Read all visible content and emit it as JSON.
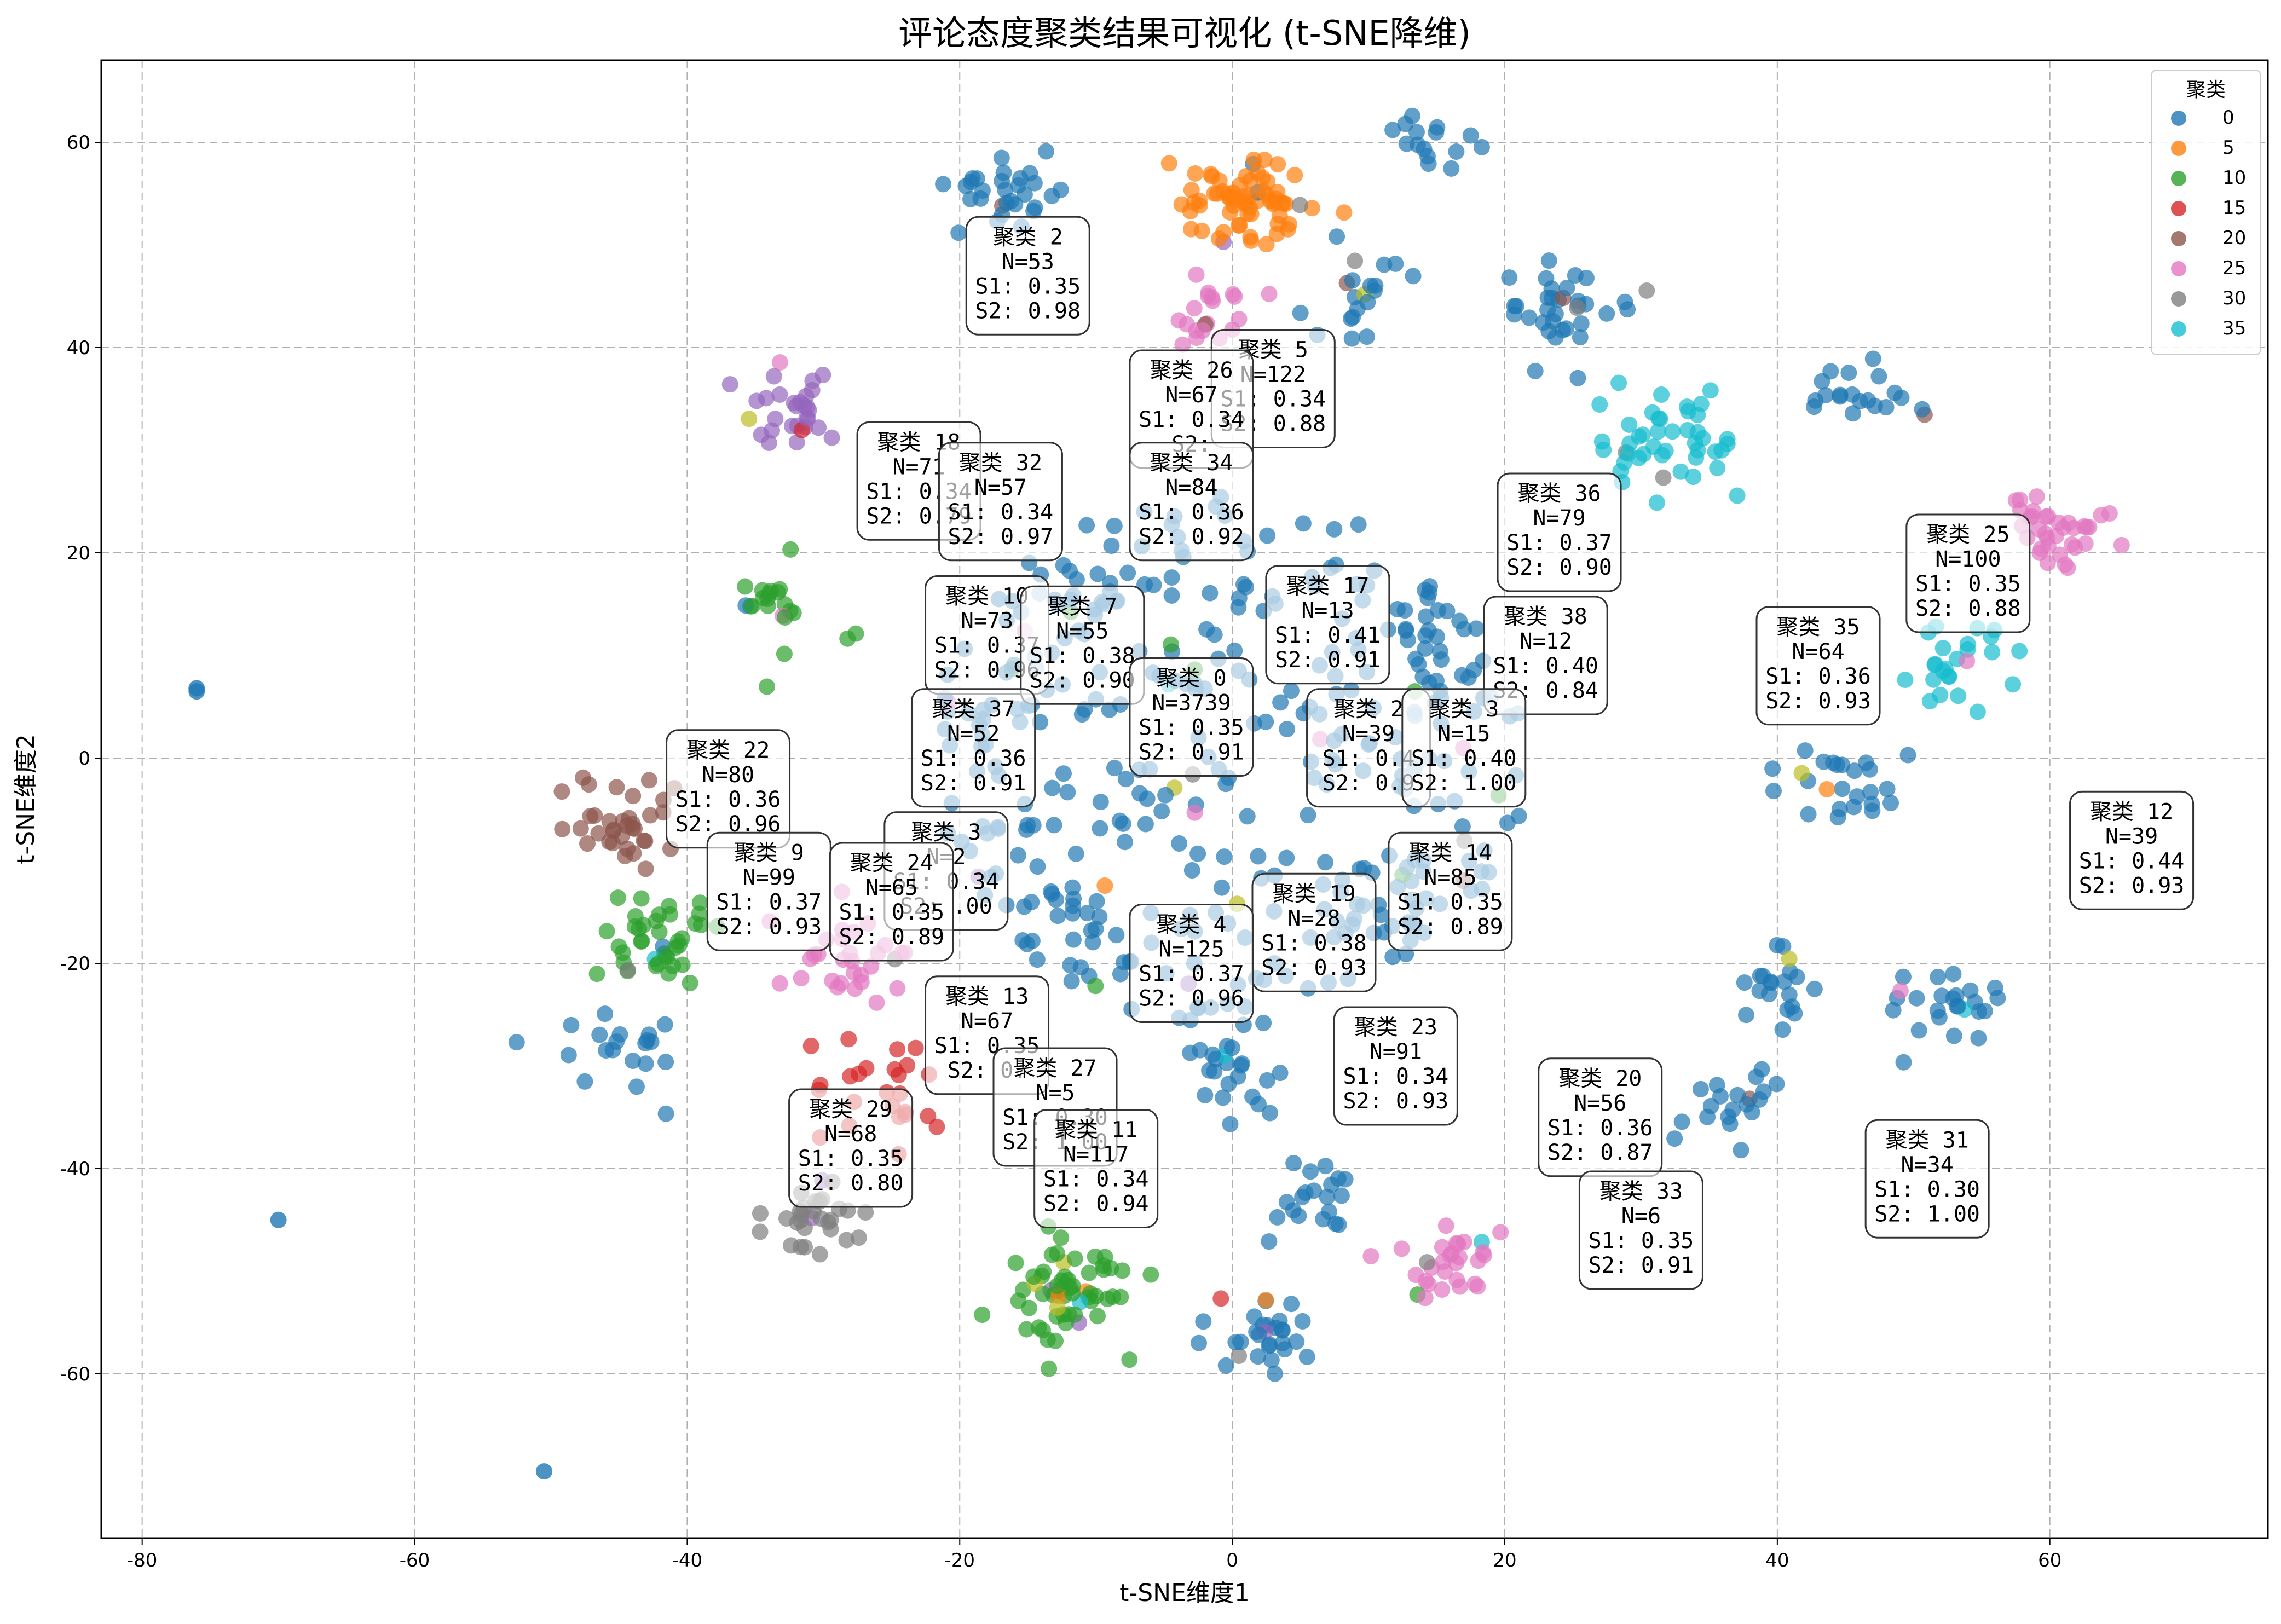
{
  "chart_data": {
    "type": "scatter",
    "title": "评论态度聚类结果可视化 (t-SNE降维)",
    "xlabel": "t-SNE维度1",
    "ylabel": "t-SNE维度2",
    "xlim": [
      -83,
      76
    ],
    "ylim": [
      -76,
      68
    ],
    "xticks": [
      -80,
      -60,
      -40,
      -20,
      0,
      20,
      40,
      60
    ],
    "yticks": [
      -60,
      -40,
      -20,
      0,
      20,
      40,
      60
    ],
    "grid": true,
    "legend": {
      "title": "聚类",
      "placement": "top-right",
      "entries": [
        {
          "label": "0",
          "color": "#1f77b4"
        },
        {
          "label": "5",
          "color": "#ff7f0e"
        },
        {
          "label": "10",
          "color": "#2ca02c"
        },
        {
          "label": "15",
          "color": "#d62728"
        },
        {
          "label": "20",
          "color": "#8c564b"
        },
        {
          "label": "25",
          "color": "#e377c2"
        },
        {
          "label": "30",
          "color": "#7f7f7f"
        },
        {
          "label": "35",
          "color": "#17becf"
        }
      ]
    },
    "clusters": [
      {
        "id": 0,
        "x": 0,
        "y": 0,
        "spread": 14,
        "count": 380,
        "color": "#1f77b4"
      },
      {
        "id": 5,
        "x": 1,
        "y": 54,
        "spread": 2.2,
        "count": 70,
        "color": "#ff7f0e"
      },
      {
        "id": 10,
        "x": -12,
        "y": -52,
        "spread": 2.5,
        "count": 60,
        "color": "#2ca02c"
      },
      {
        "id": 10,
        "x": -42,
        "y": -17,
        "spread": 2.2,
        "count": 40,
        "color": "#2ca02c"
      },
      {
        "id": 10,
        "x": -33,
        "y": 15,
        "spread": 2,
        "count": 22,
        "color": "#2ca02c"
      },
      {
        "id": 15,
        "x": -26,
        "y": -33,
        "spread": 2.5,
        "count": 25,
        "color": "#d62728"
      },
      {
        "id": 20,
        "x": -45,
        "y": -7,
        "spread": 2,
        "count": 35,
        "color": "#8c564b"
      },
      {
        "id": 25,
        "x": 61,
        "y": 22,
        "spread": 2,
        "count": 35,
        "color": "#e377c2"
      },
      {
        "id": 25,
        "x": 16,
        "y": -49,
        "spread": 2,
        "count": 30,
        "color": "#e377c2"
      },
      {
        "id": 25,
        "x": -27,
        "y": -19,
        "spread": 2.5,
        "count": 30,
        "color": "#e377c2"
      },
      {
        "id": 25,
        "x": -2,
        "y": 43,
        "spread": 2,
        "count": 20,
        "color": "#e377c2"
      },
      {
        "id": 30,
        "x": -31,
        "y": -45,
        "spread": 2,
        "count": 30,
        "color": "#7f7f7f"
      },
      {
        "id": 35,
        "x": 32,
        "y": 31,
        "spread": 2.5,
        "count": 45,
        "color": "#17becf"
      },
      {
        "id": 35,
        "x": 53,
        "y": 9,
        "spread": 2,
        "count": 25,
        "color": "#17becf"
      },
      {
        "id": 20,
        "x": -32,
        "y": 34,
        "spread": 2,
        "count": 30,
        "color": "#9467bd"
      },
      {
        "id": 0,
        "x": -17,
        "y": 55,
        "spread": 2,
        "count": 30,
        "color": "#1f77b4"
      },
      {
        "id": 0,
        "x": 25,
        "y": 43,
        "spread": 2.5,
        "count": 35,
        "color": "#1f77b4"
      },
      {
        "id": 0,
        "x": 2,
        "y": -56,
        "spread": 2,
        "count": 30,
        "color": "#1f77b4"
      },
      {
        "id": 0,
        "x": 52,
        "y": -24,
        "spread": 2,
        "count": 25,
        "color": "#1f77b4"
      },
      {
        "id": 0,
        "x": -45,
        "y": -28,
        "spread": 2,
        "count": 20,
        "color": "#1f77b4"
      },
      {
        "id": 0,
        "x": 15,
        "y": 60,
        "spread": 1.5,
        "count": 15,
        "color": "#1f77b4"
      },
      {
        "id": 0,
        "x": 46,
        "y": 36,
        "spread": 2,
        "count": 20,
        "color": "#1f77b4"
      },
      {
        "id": 0,
        "x": 40,
        "y": -22,
        "spread": 2,
        "count": 20,
        "color": "#1f77b4"
      },
      {
        "id": 0,
        "x": 37,
        "y": -33,
        "spread": 2,
        "count": 20,
        "color": "#1f77b4"
      },
      {
        "id": 0,
        "x": 0,
        "y": -31,
        "spread": 2,
        "count": 25,
        "color": "#1f77b4"
      },
      {
        "id": 0,
        "x": 6,
        "y": -43,
        "spread": 2,
        "count": 20,
        "color": "#1f77b4"
      },
      {
        "id": 0,
        "x": 10,
        "y": 46,
        "spread": 2,
        "count": 20,
        "color": "#1f77b4"
      },
      {
        "id": 0,
        "x": 45,
        "y": -2,
        "spread": 2,
        "count": 25,
        "color": "#1f77b4"
      }
    ],
    "labels": [
      {
        "id": "2",
        "x": -15,
        "y": 47,
        "n": "53",
        "s1": "0.35",
        "s2": "0.98"
      },
      {
        "id": "5",
        "x": 3,
        "y": 36,
        "n": "122",
        "s1": "0.34",
        "s2": "0.88"
      },
      {
        "id": "26",
        "x": -3,
        "y": 34,
        "n": "67",
        "s1": "0.34",
        "s2": ""
      },
      {
        "id": "18",
        "x": -23,
        "y": 27,
        "n": "71",
        "s1": "0.34",
        "s2": "0.79"
      },
      {
        "id": "32",
        "x": -17,
        "y": 25,
        "n": "57",
        "s1": "0.34",
        "s2": "0.97"
      },
      {
        "id": "34",
        "x": -3,
        "y": 25,
        "n": "84",
        "s1": "0.36",
        "s2": "0.92"
      },
      {
        "id": "36",
        "x": 24,
        "y": 22,
        "n": "79",
        "s1": "0.37",
        "s2": "0.90"
      },
      {
        "id": "25",
        "x": 54,
        "y": 18,
        "n": "100",
        "s1": "0.35",
        "s2": "0.88"
      },
      {
        "id": "17",
        "x": 7,
        "y": 13,
        "n": "13",
        "s1": "0.41",
        "s2": "0.91"
      },
      {
        "id": "10",
        "x": -18,
        "y": 12,
        "n": "73",
        "s1": "0.37",
        "s2": "0.96"
      },
      {
        "id": "7",
        "x": -11,
        "y": 11,
        "n": "55",
        "s1": "0.38",
        "s2": "0.90"
      },
      {
        "id": "38",
        "x": 23,
        "y": 10,
        "n": "12",
        "s1": "0.40",
        "s2": "0.84"
      },
      {
        "id": "35",
        "x": 43,
        "y": 9,
        "n": "64",
        "s1": "0.36",
        "s2": "0.93"
      },
      {
        "id": "0",
        "x": -3,
        "y": 4,
        "n": "3739",
        "s1": "0.35",
        "s2": "0.91"
      },
      {
        "id": "2",
        "x": 10,
        "y": 1,
        "n": "39",
        "s1": "0.4",
        "s2": "0.9"
      },
      {
        "id": "3",
        "x": 17,
        "y": 1,
        "n": "15",
        "s1": "0.40",
        "s2": "1.00"
      },
      {
        "id": "37",
        "x": -19,
        "y": 1,
        "n": "52",
        "s1": "0.36",
        "s2": "0.91"
      },
      {
        "id": "22",
        "x": -37,
        "y": -3,
        "n": "80",
        "s1": "0.36",
        "s2": "0.96"
      },
      {
        "id": "12",
        "x": 66,
        "y": -9,
        "n": "39",
        "s1": "0.44",
        "s2": "0.93"
      },
      {
        "id": "3",
        "x": -21,
        "y": -11,
        "n": "2",
        "s1": "0.34",
        "s2": ".00"
      },
      {
        "id": "9",
        "x": -34,
        "y": -13,
        "n": "99",
        "s1": "0.37",
        "s2": "0.93"
      },
      {
        "id": "24",
        "x": -25,
        "y": -14,
        "n": "65",
        "s1": "0.35",
        "s2": "0.89"
      },
      {
        "id": "14",
        "x": 16,
        "y": -13,
        "n": "85",
        "s1": "0.35",
        "s2": "0.89"
      },
      {
        "id": "19",
        "x": 6,
        "y": -17,
        "n": "28",
        "s1": "0.38",
        "s2": "0.93"
      },
      {
        "id": "4",
        "x": -3,
        "y": -20,
        "n": "125",
        "s1": "0.37",
        "s2": "0.96"
      },
      {
        "id": "13",
        "x": -18,
        "y": -27,
        "n": "67",
        "s1": "0.35",
        "s2": "0."
      },
      {
        "id": "23",
        "x": 12,
        "y": -30,
        "n": "91",
        "s1": "0.34",
        "s2": "0.93"
      },
      {
        "id": "27",
        "x": -13,
        "y": -34,
        "n": "5",
        "s1": "0.30",
        "s2": "1.00"
      },
      {
        "id": "20",
        "x": 27,
        "y": -35,
        "n": "56",
        "s1": "0.36",
        "s2": "0.87"
      },
      {
        "id": "29",
        "x": -28,
        "y": -38,
        "n": "68",
        "s1": "0.35",
        "s2": "0.80"
      },
      {
        "id": "11",
        "x": -10,
        "y": -40,
        "n": "117",
        "s1": "0.34",
        "s2": "0.94"
      },
      {
        "id": "31",
        "x": 51,
        "y": -41,
        "n": "34",
        "s1": "0.30",
        "s2": "1.00"
      },
      {
        "id": "33",
        "x": 30,
        "y": -46,
        "n": "6",
        "s1": "0.35",
        "s2": "0.91"
      }
    ],
    "outliers": [
      {
        "x": -76,
        "y": 6.8,
        "color": "#1f77b4"
      },
      {
        "x": -76,
        "y": 6.5,
        "color": "#1f77b4"
      },
      {
        "x": -70,
        "y": -45,
        "color": "#1f77b4"
      },
      {
        "x": -50.5,
        "y": -69.5,
        "color": "#1f77b4"
      }
    ]
  }
}
